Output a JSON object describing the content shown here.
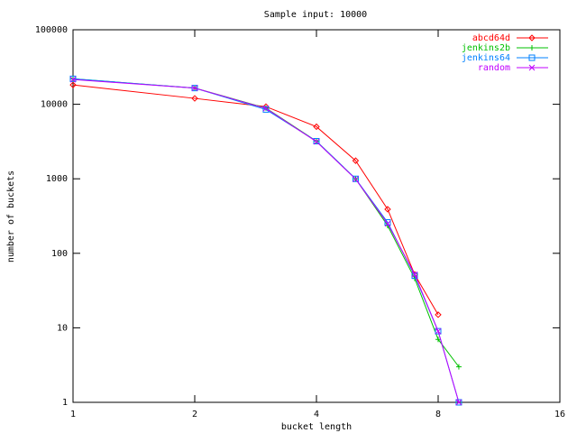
{
  "chart_data": {
    "type": "line",
    "title": "Sample input: 10000",
    "x_label": "bucket length",
    "y_label": "number of buckets",
    "x_log_base": 2,
    "y_log_base": 10,
    "xlim": [
      1,
      16
    ],
    "xticks": [
      1,
      2,
      4,
      8,
      16
    ],
    "ylim": [
      1,
      100000
    ],
    "yticks": [
      1,
      10,
      100,
      1000,
      10000,
      100000
    ],
    "legend": "top-right",
    "series": [
      {
        "name": "abcd64d",
        "color": "#ff0000",
        "marker": "diamond",
        "x": [
          1,
          2,
          3,
          4,
          5,
          6,
          7,
          8
        ],
        "values": [
          18200,
          12000,
          9300,
          5000,
          1750,
          390,
          52,
          15
        ]
      },
      {
        "name": "jenkins2b",
        "color": "#00c000",
        "marker": "plus",
        "x": [
          1,
          2,
          3,
          4,
          5,
          6,
          7,
          8,
          9
        ],
        "values": [
          22000,
          16500,
          8900,
          3200,
          1000,
          235,
          46,
          7,
          3
        ]
      },
      {
        "name": "jenkins64",
        "color": "#0080ff",
        "marker": "square",
        "x": [
          1,
          2,
          3,
          4,
          5,
          6,
          7,
          8,
          9
        ],
        "values": [
          22000,
          16500,
          8500,
          3200,
          1000,
          260,
          50,
          9,
          1
        ]
      },
      {
        "name": "random",
        "color": "#c000ff",
        "marker": "cross",
        "x": [
          1,
          2,
          3,
          4,
          5,
          6,
          7,
          8,
          9
        ],
        "values": [
          21500,
          16500,
          8800,
          3150,
          990,
          250,
          52,
          9,
          1
        ]
      }
    ]
  }
}
